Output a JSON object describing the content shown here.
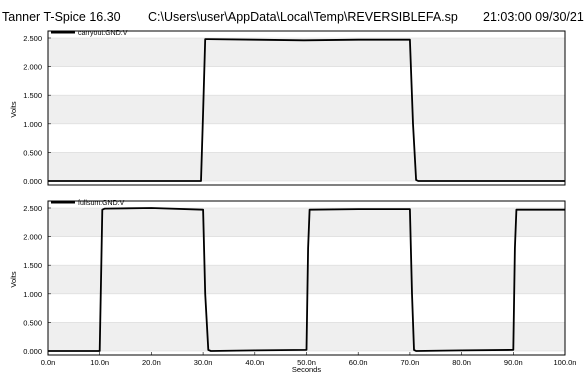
{
  "header": {
    "app": "Tanner T-Spice 16.30",
    "file": "C:\\Users\\user\\AppData\\Local\\Temp\\REVERSIBLEFA.sp",
    "timestamp": "21:03:00 09/30/21"
  },
  "chart_data": [
    {
      "type": "line",
      "series": [
        {
          "name": "carryout:GND:V",
          "x": [
            0,
            29.6,
            30.0,
            30.4,
            31.0,
            40,
            49.5,
            60,
            70,
            70.6,
            71.2,
            71.6,
            80,
            90,
            100
          ],
          "y": [
            0.0,
            0.0,
            1.2,
            2.48,
            2.48,
            2.47,
            2.46,
            2.47,
            2.47,
            1.0,
            0.02,
            0.0,
            0.0,
            0.0,
            0.0
          ]
        }
      ],
      "xlim": [
        0,
        100
      ],
      "ylim": [
        0,
        2.5
      ],
      "yticks": [
        "0.000",
        "0.500",
        "1.000",
        "1.500",
        "2.000",
        "2.500"
      ],
      "ylabel": "Volts",
      "grid": true
    },
    {
      "type": "line",
      "series": [
        {
          "name": "fullsum:GND:V",
          "x": [
            0,
            10,
            10.3,
            10.5,
            11,
            20,
            30,
            30.4,
            31,
            31.5,
            40,
            50,
            50.3,
            50.6,
            60,
            70,
            70.4,
            70.8,
            71.2,
            80,
            90,
            90.3,
            90.6,
            100
          ],
          "y": [
            0.0,
            0.0,
            1.5,
            2.47,
            2.49,
            2.5,
            2.47,
            1.0,
            0.02,
            0.0,
            0.01,
            0.02,
            1.8,
            2.47,
            2.48,
            2.48,
            1.0,
            0.02,
            0.0,
            0.01,
            0.02,
            1.8,
            2.47,
            2.47
          ]
        }
      ],
      "xlim": [
        0,
        100
      ],
      "ylim": [
        0,
        2.5
      ],
      "yticks": [
        "0.000",
        "0.500",
        "1.000",
        "1.500",
        "2.000",
        "2.500"
      ],
      "xticks": [
        "0.0n",
        "10.0n",
        "20.0n",
        "30.0n",
        "40.0n",
        "50.0n",
        "60.0n",
        "70.0n",
        "80.0n",
        "90.0n",
        "100.0n"
      ],
      "xlabel": "Seconds",
      "ylabel": "Volts",
      "grid": true
    }
  ]
}
